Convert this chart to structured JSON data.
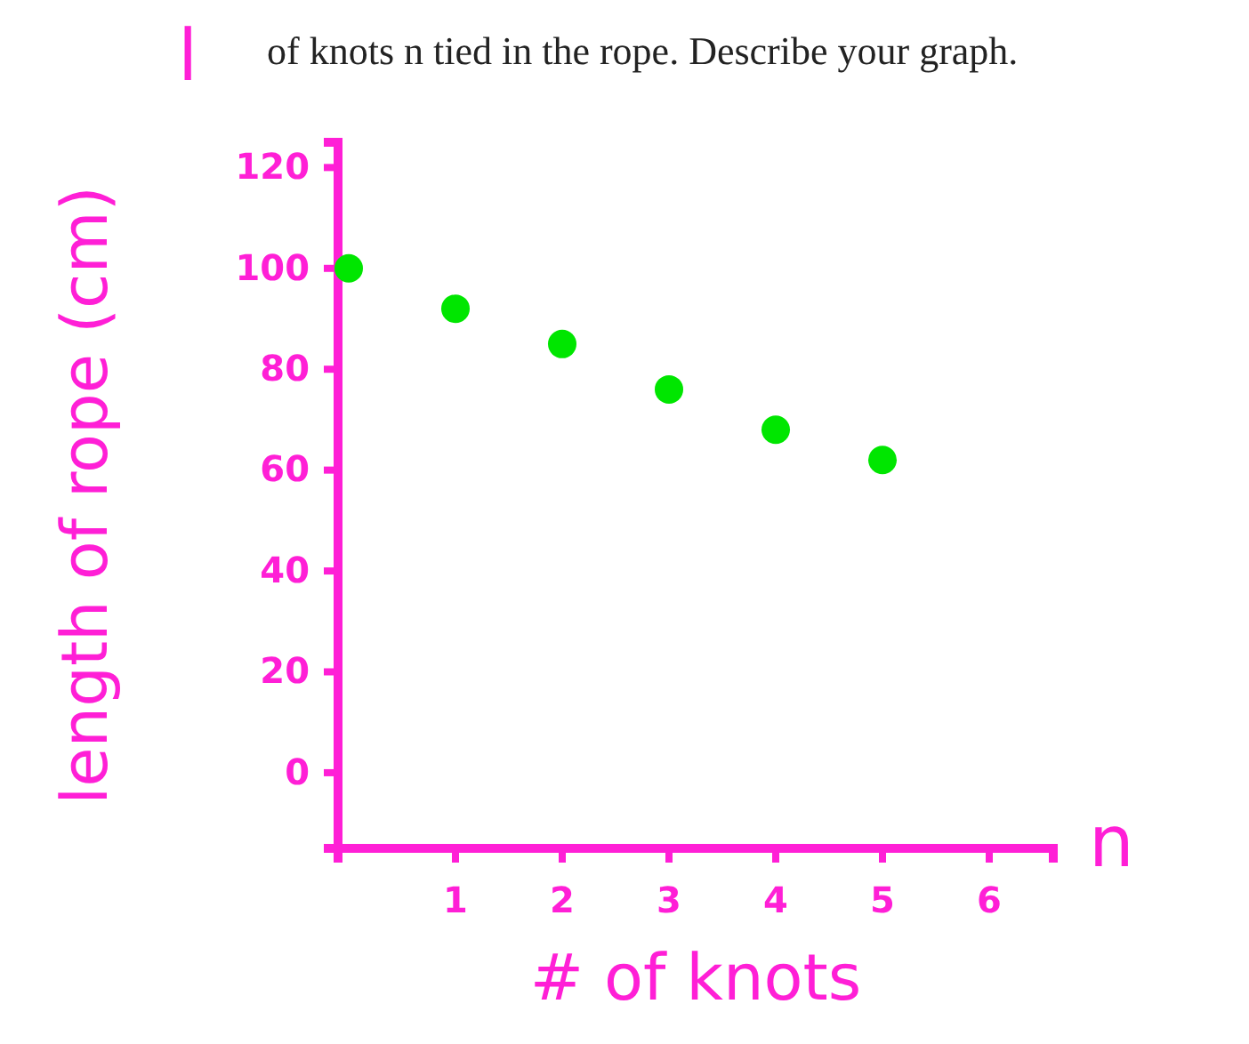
{
  "chart_data": {
    "type": "scatter",
    "xlabel": "# of knots",
    "ylabel": "length of rope (cm)",
    "annotations": [
      "of knots n tied in the rope. Describe your graph.",
      "n",
      "l"
    ],
    "x": [
      0,
      1,
      2,
      3,
      4,
      5
    ],
    "series": [
      {
        "color": "#00e600",
        "values": [
          100,
          92,
          85,
          76,
          68,
          62
        ]
      }
    ],
    "xlim": [
      -0.1,
      6.6
    ],
    "ylim": [
      -15,
      125
    ],
    "xticks": [
      1,
      2,
      3,
      4,
      5,
      6
    ],
    "yticks": [
      0,
      20,
      40,
      60,
      80,
      100,
      120
    ],
    "marker": "circle"
  }
}
